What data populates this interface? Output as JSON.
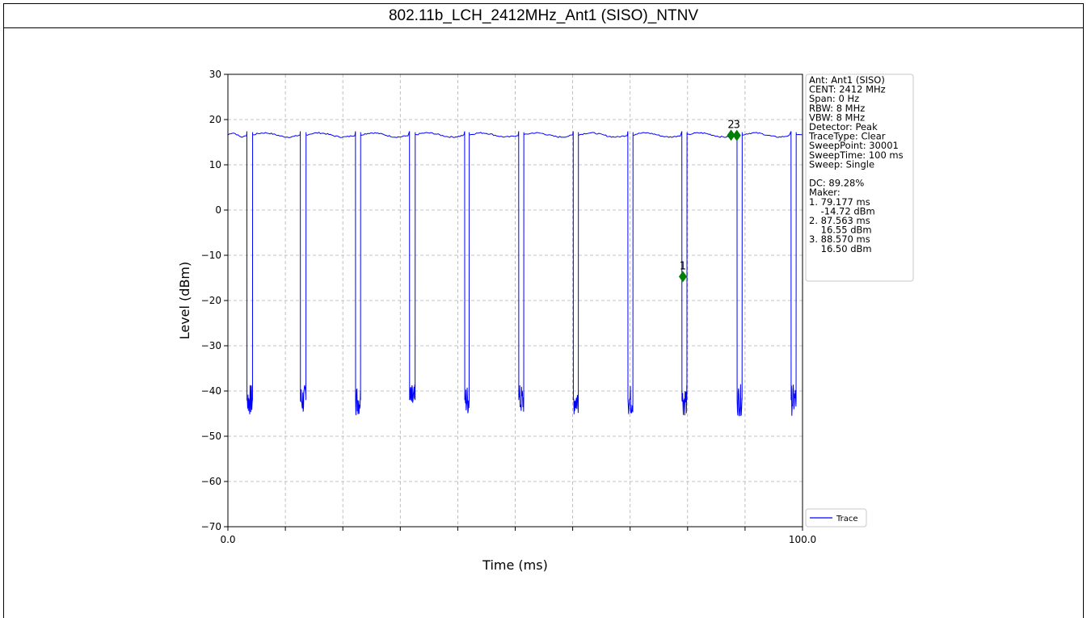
{
  "chart_data": {
    "type": "line",
    "title": "802.11b_LCH_2412MHz_Ant1 (SISO)_NTNV",
    "xlabel": "Time (ms)",
    "ylabel": "Level (dBm)",
    "xlim": [
      0,
      100
    ],
    "ylim": [
      -70,
      30
    ],
    "x_ticks": [
      0,
      10,
      20,
      30,
      40,
      50,
      60,
      70,
      80,
      90,
      100
    ],
    "x_tick_labels": [
      "0.0",
      "",
      "",
      "",
      "",
      "",
      "",
      "",
      "",
      "",
      "100.0"
    ],
    "y_ticks": [
      30,
      20,
      10,
      0,
      -10,
      -20,
      -30,
      -40,
      -50,
      -60,
      -70
    ],
    "y_tick_labels": [
      "30",
      "20",
      "10",
      "0",
      "−10",
      "−20",
      "−30",
      "−40",
      "−50",
      "−60",
      "−70"
    ],
    "grid": true,
    "legend": {
      "placement": "lower-right",
      "entries": [
        "Trace"
      ]
    },
    "series": [
      {
        "name": "Trace",
        "color": "#0000ff",
        "on_level_dbm": 16.6,
        "off_level_dbm": -42,
        "off_gaps_ms": [
          [
            3.3,
            4.3
          ],
          [
            12.6,
            13.6
          ],
          [
            22.2,
            23.1
          ],
          [
            31.6,
            32.6
          ],
          [
            41.2,
            42.0
          ],
          [
            50.6,
            51.5
          ],
          [
            60.1,
            61.0
          ],
          [
            69.6,
            70.5
          ],
          [
            79.0,
            79.9
          ],
          [
            88.6,
            89.5
          ],
          [
            98.0,
            98.9
          ]
        ]
      }
    ],
    "markers": [
      {
        "label": "1",
        "x": 79.177,
        "y": -14.72,
        "color": "#008000"
      },
      {
        "label": "2",
        "x": 87.563,
        "y": 16.55,
        "color": "#008000"
      },
      {
        "label": "3",
        "x": 88.57,
        "y": 16.5,
        "color": "#008000"
      }
    ],
    "info_box": [
      "Ant: Ant1 (SISO)",
      "CENT: 2412 MHz",
      "Span: 0 Hz",
      "RBW: 8 MHz",
      "VBW: 8 MHz",
      "Detector: Peak",
      "TraceType: Clear",
      "SweepPoint: 30001",
      "SweepTime: 100 ms",
      "Sweep: Single",
      "",
      "DC: 89.28%",
      "Maker:",
      "1. 79.177 ms",
      "    -14.72 dBm",
      "2. 87.563 ms",
      "    16.55 dBm",
      "3. 88.570 ms",
      "    16.50 dBm"
    ]
  }
}
